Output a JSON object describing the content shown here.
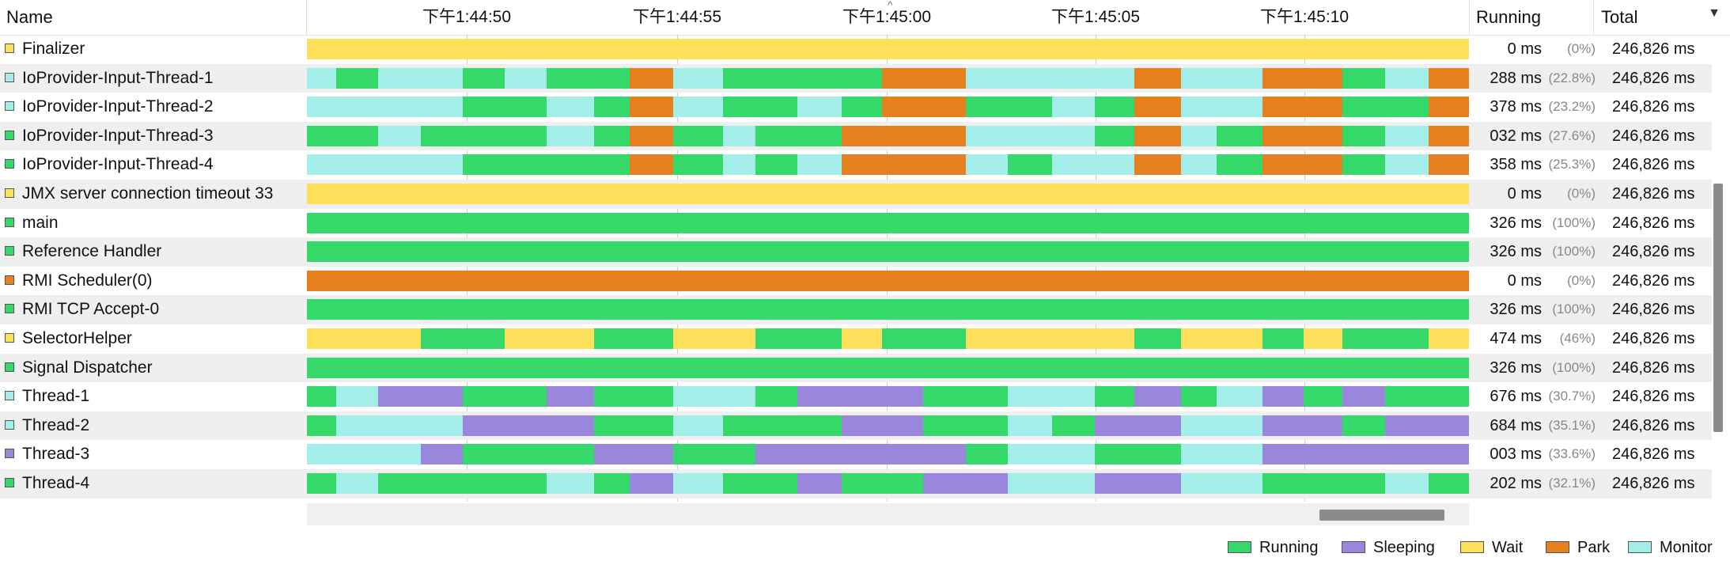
{
  "header": {
    "name": "Name",
    "running": "Running",
    "total": "Total",
    "ticks": [
      "下午1:44:50",
      "下午1:44:55",
      "下午1:45:00",
      "下午1:45:05",
      "下午1:45:10"
    ]
  },
  "colors": {
    "Running": "#34d96a",
    "Sleeping": "#9b86dd",
    "Wait": "#fde05a",
    "Park": "#e6801f",
    "Monitor": "#a4eee9"
  },
  "threads": [
    {
      "name": "Finalizer",
      "state": "Wait",
      "running_ms": "0 ms",
      "running_pct": "(0%)",
      "total": "246,826 ms",
      "segments": [
        [
          0,
          1,
          "Wait"
        ]
      ]
    },
    {
      "name": "IoProvider-Input-Thread-1",
      "state": "Monitor",
      "running_ms": "288 ms",
      "running_pct": "(22.8%)",
      "total": "246,826 ms",
      "segments": [
        [
          0,
          0.025,
          "Monitor"
        ],
        [
          0.025,
          0.061,
          "Running"
        ],
        [
          0.061,
          0.134,
          "Monitor"
        ],
        [
          0.134,
          0.17,
          "Running"
        ],
        [
          0.17,
          0.206,
          "Monitor"
        ],
        [
          0.206,
          0.278,
          "Running"
        ],
        [
          0.278,
          0.315,
          "Park"
        ],
        [
          0.315,
          0.358,
          "Monitor"
        ],
        [
          0.358,
          0.495,
          "Running"
        ],
        [
          0.495,
          0.567,
          "Park"
        ],
        [
          0.567,
          0.712,
          "Monitor"
        ],
        [
          0.712,
          0.752,
          "Park"
        ],
        [
          0.752,
          0.822,
          "Monitor"
        ],
        [
          0.822,
          0.891,
          "Park"
        ],
        [
          0.891,
          0.928,
          "Running"
        ],
        [
          0.928,
          0.965,
          "Monitor"
        ],
        [
          0.965,
          1,
          "Park"
        ]
      ]
    },
    {
      "name": "IoProvider-Input-Thread-2",
      "state": "Monitor",
      "running_ms": "378 ms",
      "running_pct": "(23.2%)",
      "total": "246,826 ms",
      "segments": [
        [
          0,
          0.134,
          "Monitor"
        ],
        [
          0.134,
          0.206,
          "Running"
        ],
        [
          0.206,
          0.247,
          "Monitor"
        ],
        [
          0.247,
          0.278,
          "Running"
        ],
        [
          0.278,
          0.315,
          "Park"
        ],
        [
          0.315,
          0.358,
          "Monitor"
        ],
        [
          0.358,
          0.422,
          "Running"
        ],
        [
          0.422,
          0.46,
          "Monitor"
        ],
        [
          0.46,
          0.495,
          "Running"
        ],
        [
          0.495,
          0.567,
          "Park"
        ],
        [
          0.567,
          0.641,
          "Running"
        ],
        [
          0.641,
          0.678,
          "Monitor"
        ],
        [
          0.678,
          0.712,
          "Running"
        ],
        [
          0.712,
          0.752,
          "Park"
        ],
        [
          0.752,
          0.822,
          "Monitor"
        ],
        [
          0.822,
          0.891,
          "Park"
        ],
        [
          0.891,
          0.965,
          "Running"
        ],
        [
          0.965,
          1,
          "Park"
        ]
      ]
    },
    {
      "name": "IoProvider-Input-Thread-3",
      "state": "Running",
      "running_ms": "032 ms",
      "running_pct": "(27.6%)",
      "total": "246,826 ms",
      "segments": [
        [
          0,
          0.061,
          "Running"
        ],
        [
          0.061,
          0.098,
          "Monitor"
        ],
        [
          0.098,
          0.206,
          "Running"
        ],
        [
          0.206,
          0.247,
          "Monitor"
        ],
        [
          0.247,
          0.278,
          "Running"
        ],
        [
          0.278,
          0.315,
          "Park"
        ],
        [
          0.315,
          0.358,
          "Running"
        ],
        [
          0.358,
          0.386,
          "Monitor"
        ],
        [
          0.386,
          0.46,
          "Running"
        ],
        [
          0.46,
          0.567,
          "Park"
        ],
        [
          0.567,
          0.678,
          "Monitor"
        ],
        [
          0.678,
          0.712,
          "Running"
        ],
        [
          0.712,
          0.752,
          "Park"
        ],
        [
          0.752,
          0.783,
          "Monitor"
        ],
        [
          0.783,
          0.822,
          "Running"
        ],
        [
          0.822,
          0.891,
          "Park"
        ],
        [
          0.891,
          0.928,
          "Running"
        ],
        [
          0.928,
          0.965,
          "Monitor"
        ],
        [
          0.965,
          1,
          "Park"
        ]
      ]
    },
    {
      "name": "IoProvider-Input-Thread-4",
      "state": "Running",
      "running_ms": "358 ms",
      "running_pct": "(25.3%)",
      "total": "246,826 ms",
      "segments": [
        [
          0,
          0.134,
          "Monitor"
        ],
        [
          0.134,
          0.278,
          "Running"
        ],
        [
          0.278,
          0.315,
          "Park"
        ],
        [
          0.315,
          0.358,
          "Running"
        ],
        [
          0.358,
          0.386,
          "Monitor"
        ],
        [
          0.386,
          0.422,
          "Running"
        ],
        [
          0.422,
          0.46,
          "Monitor"
        ],
        [
          0.46,
          0.567,
          "Park"
        ],
        [
          0.567,
          0.603,
          "Monitor"
        ],
        [
          0.603,
          0.641,
          "Running"
        ],
        [
          0.641,
          0.712,
          "Monitor"
        ],
        [
          0.712,
          0.752,
          "Park"
        ],
        [
          0.752,
          0.783,
          "Monitor"
        ],
        [
          0.783,
          0.822,
          "Running"
        ],
        [
          0.822,
          0.891,
          "Park"
        ],
        [
          0.891,
          0.928,
          "Running"
        ],
        [
          0.928,
          0.965,
          "Monitor"
        ],
        [
          0.965,
          1,
          "Park"
        ]
      ]
    },
    {
      "name": "JMX server connection timeout 33",
      "state": "Wait",
      "running_ms": "0 ms",
      "running_pct": "(0%)",
      "total": "246,826 ms",
      "segments": [
        [
          0,
          1,
          "Wait"
        ]
      ]
    },
    {
      "name": "main",
      "state": "Running",
      "running_ms": "326 ms",
      "running_pct": "(100%)",
      "total": "246,826 ms",
      "segments": [
        [
          0,
          1,
          "Running"
        ]
      ]
    },
    {
      "name": "Reference Handler",
      "state": "Running",
      "running_ms": "326 ms",
      "running_pct": "(100%)",
      "total": "246,826 ms",
      "segments": [
        [
          0,
          1,
          "Running"
        ]
      ]
    },
    {
      "name": "RMI Scheduler(0)",
      "state": "Park",
      "running_ms": "0 ms",
      "running_pct": "(0%)",
      "total": "246,826 ms",
      "segments": [
        [
          0,
          1,
          "Park"
        ]
      ]
    },
    {
      "name": "RMI TCP Accept-0",
      "state": "Running",
      "running_ms": "326 ms",
      "running_pct": "(100%)",
      "total": "246,826 ms",
      "segments": [
        [
          0,
          1,
          "Running"
        ]
      ]
    },
    {
      "name": "SelectorHelper",
      "state": "Wait",
      "running_ms": "474 ms",
      "running_pct": "(46%)",
      "total": "246,826 ms",
      "segments": [
        [
          0,
          0.098,
          "Wait"
        ],
        [
          0.098,
          0.17,
          "Running"
        ],
        [
          0.17,
          0.247,
          "Wait"
        ],
        [
          0.247,
          0.315,
          "Running"
        ],
        [
          0.315,
          0.386,
          "Wait"
        ],
        [
          0.386,
          0.46,
          "Running"
        ],
        [
          0.46,
          0.495,
          "Wait"
        ],
        [
          0.495,
          0.567,
          "Running"
        ],
        [
          0.567,
          0.712,
          "Wait"
        ],
        [
          0.712,
          0.752,
          "Running"
        ],
        [
          0.752,
          0.822,
          "Wait"
        ],
        [
          0.822,
          0.858,
          "Running"
        ],
        [
          0.858,
          0.891,
          "Wait"
        ],
        [
          0.891,
          0.965,
          "Running"
        ],
        [
          0.965,
          1,
          "Wait"
        ]
      ]
    },
    {
      "name": "Signal Dispatcher",
      "state": "Running",
      "running_ms": "326 ms",
      "running_pct": "(100%)",
      "total": "246,826 ms",
      "segments": [
        [
          0,
          1,
          "Running"
        ]
      ]
    },
    {
      "name": "Thread-1",
      "state": "Monitor",
      "running_ms": "676 ms",
      "running_pct": "(30.7%)",
      "total": "246,826 ms",
      "segments": [
        [
          0,
          0.025,
          "Running"
        ],
        [
          0.025,
          0.061,
          "Monitor"
        ],
        [
          0.061,
          0.134,
          "Sleeping"
        ],
        [
          0.134,
          0.206,
          "Running"
        ],
        [
          0.206,
          0.247,
          "Sleeping"
        ],
        [
          0.247,
          0.315,
          "Running"
        ],
        [
          0.315,
          0.386,
          "Monitor"
        ],
        [
          0.386,
          0.422,
          "Running"
        ],
        [
          0.422,
          0.53,
          "Sleeping"
        ],
        [
          0.53,
          0.603,
          "Running"
        ],
        [
          0.603,
          0.678,
          "Monitor"
        ],
        [
          0.678,
          0.712,
          "Running"
        ],
        [
          0.712,
          0.752,
          "Sleeping"
        ],
        [
          0.752,
          0.783,
          "Running"
        ],
        [
          0.783,
          0.822,
          "Monitor"
        ],
        [
          0.822,
          0.858,
          "Sleeping"
        ],
        [
          0.858,
          0.891,
          "Running"
        ],
        [
          0.891,
          0.928,
          "Sleeping"
        ],
        [
          0.928,
          1,
          "Running"
        ]
      ]
    },
    {
      "name": "Thread-2",
      "state": "Monitor",
      "running_ms": "684 ms",
      "running_pct": "(35.1%)",
      "total": "246,826 ms",
      "segments": [
        [
          0,
          0.025,
          "Running"
        ],
        [
          0.025,
          0.134,
          "Monitor"
        ],
        [
          0.134,
          0.247,
          "Sleeping"
        ],
        [
          0.247,
          0.315,
          "Running"
        ],
        [
          0.315,
          0.358,
          "Monitor"
        ],
        [
          0.358,
          0.46,
          "Running"
        ],
        [
          0.46,
          0.53,
          "Sleeping"
        ],
        [
          0.53,
          0.603,
          "Running"
        ],
        [
          0.603,
          0.641,
          "Monitor"
        ],
        [
          0.641,
          0.678,
          "Running"
        ],
        [
          0.678,
          0.752,
          "Sleeping"
        ],
        [
          0.752,
          0.822,
          "Monitor"
        ],
        [
          0.822,
          0.891,
          "Sleeping"
        ],
        [
          0.891,
          0.928,
          "Running"
        ],
        [
          0.928,
          1,
          "Sleeping"
        ]
      ]
    },
    {
      "name": "Thread-3",
      "state": "Sleeping",
      "running_ms": "003 ms",
      "running_pct": "(33.6%)",
      "total": "246,826 ms",
      "segments": [
        [
          0,
          0.098,
          "Monitor"
        ],
        [
          0.098,
          0.134,
          "Sleeping"
        ],
        [
          0.134,
          0.247,
          "Running"
        ],
        [
          0.247,
          0.315,
          "Sleeping"
        ],
        [
          0.315,
          0.386,
          "Running"
        ],
        [
          0.386,
          0.567,
          "Sleeping"
        ],
        [
          0.567,
          0.603,
          "Running"
        ],
        [
          0.603,
          0.678,
          "Monitor"
        ],
        [
          0.678,
          0.752,
          "Running"
        ],
        [
          0.752,
          0.822,
          "Monitor"
        ],
        [
          0.822,
          1,
          "Sleeping"
        ]
      ]
    },
    {
      "name": "Thread-4",
      "state": "Running",
      "running_ms": "202 ms",
      "running_pct": "(32.1%)",
      "total": "246,826 ms",
      "segments": [
        [
          0,
          0.025,
          "Running"
        ],
        [
          0.025,
          0.061,
          "Monitor"
        ],
        [
          0.061,
          0.206,
          "Running"
        ],
        [
          0.206,
          0.247,
          "Monitor"
        ],
        [
          0.247,
          0.278,
          "Running"
        ],
        [
          0.278,
          0.315,
          "Sleeping"
        ],
        [
          0.315,
          0.358,
          "Monitor"
        ],
        [
          0.358,
          0.422,
          "Running"
        ],
        [
          0.422,
          0.46,
          "Sleeping"
        ],
        [
          0.46,
          0.53,
          "Running"
        ],
        [
          0.53,
          0.603,
          "Sleeping"
        ],
        [
          0.603,
          0.678,
          "Monitor"
        ],
        [
          0.678,
          0.752,
          "Sleeping"
        ],
        [
          0.752,
          0.822,
          "Monitor"
        ],
        [
          0.822,
          0.928,
          "Running"
        ],
        [
          0.928,
          0.965,
          "Monitor"
        ],
        [
          0.965,
          1,
          "Running"
        ]
      ]
    }
  ],
  "legend": [
    "Running",
    "Sleeping",
    "Wait",
    "Park",
    "Monitor"
  ]
}
